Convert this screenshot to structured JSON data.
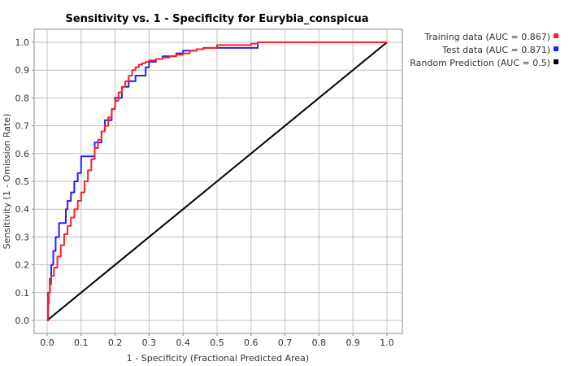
{
  "chart_data": {
    "type": "line",
    "title": "Sensitivity vs. 1 - Specificity for Eurybia_conspicua",
    "xlabel": "1 - Specificity  (Fractional Predicted Area)",
    "ylabel": "Sensitivity  (1 - Omission Rate)",
    "xlim": [
      0,
      1
    ],
    "ylim": [
      0,
      1
    ],
    "xticks": [
      "0.0",
      "0.1",
      "0.2",
      "0.3",
      "0.4",
      "0.5",
      "0.6",
      "0.7",
      "0.8",
      "0.9",
      "1.0"
    ],
    "yticks": [
      "0.0",
      "0.1",
      "0.2",
      "0.3",
      "0.4",
      "0.5",
      "0.6",
      "0.7",
      "0.8",
      "0.9",
      "1.0"
    ],
    "grid": true,
    "legend_position": "top-right-outside",
    "series": [
      {
        "name": "Training data (AUC = 0.867)",
        "color": "#ff2020",
        "x": [
          0,
          0.002,
          0.005,
          0.008,
          0.012,
          0.02,
          0.03,
          0.04,
          0.05,
          0.06,
          0.07,
          0.08,
          0.09,
          0.1,
          0.11,
          0.12,
          0.13,
          0.14,
          0.15,
          0.16,
          0.17,
          0.18,
          0.19,
          0.2,
          0.21,
          0.22,
          0.23,
          0.24,
          0.25,
          0.26,
          0.27,
          0.28,
          0.29,
          0.3,
          0.32,
          0.34,
          0.36,
          0.38,
          0.4,
          0.42,
          0.44,
          0.46,
          0.5,
          0.55,
          0.6,
          0.62,
          0.65,
          0.7,
          0.8,
          0.9,
          1.0
        ],
        "y": [
          0,
          0.06,
          0.1,
          0.13,
          0.16,
          0.19,
          0.23,
          0.27,
          0.31,
          0.34,
          0.37,
          0.4,
          0.43,
          0.46,
          0.5,
          0.54,
          0.58,
          0.62,
          0.65,
          0.68,
          0.7,
          0.73,
          0.76,
          0.79,
          0.82,
          0.84,
          0.86,
          0.88,
          0.9,
          0.91,
          0.92,
          0.925,
          0.93,
          0.935,
          0.94,
          0.945,
          0.95,
          0.955,
          0.96,
          0.97,
          0.975,
          0.98,
          0.99,
          0.99,
          0.995,
          1.0,
          1.0,
          1.0,
          1.0,
          1.0,
          1.0
        ]
      },
      {
        "name": "Test data (AUC = 0.871)",
        "color": "#2020ff",
        "x": [
          0,
          0.003,
          0.008,
          0.012,
          0.018,
          0.025,
          0.035,
          0.05,
          0.055,
          0.06,
          0.07,
          0.08,
          0.09,
          0.1,
          0.11,
          0.13,
          0.14,
          0.16,
          0.17,
          0.19,
          0.2,
          0.22,
          0.24,
          0.26,
          0.29,
          0.3,
          0.32,
          0.34,
          0.38,
          0.4,
          0.44,
          0.46,
          0.5,
          0.58,
          0.62,
          0.65,
          0.7,
          0.8,
          0.9,
          1.0
        ],
        "y": [
          0,
          0.1,
          0.15,
          0.2,
          0.25,
          0.3,
          0.35,
          0.35,
          0.4,
          0.43,
          0.46,
          0.5,
          0.53,
          0.59,
          0.59,
          0.59,
          0.64,
          0.68,
          0.72,
          0.76,
          0.8,
          0.84,
          0.86,
          0.88,
          0.91,
          0.93,
          0.94,
          0.95,
          0.96,
          0.97,
          0.975,
          0.98,
          0.98,
          0.98,
          1.0,
          1.0,
          1.0,
          1.0,
          1.0,
          1.0
        ]
      },
      {
        "name": "Random Prediction (AUC = 0.5)",
        "color": "#000000",
        "x": [
          0,
          1
        ],
        "y": [
          0,
          1
        ]
      }
    ]
  }
}
